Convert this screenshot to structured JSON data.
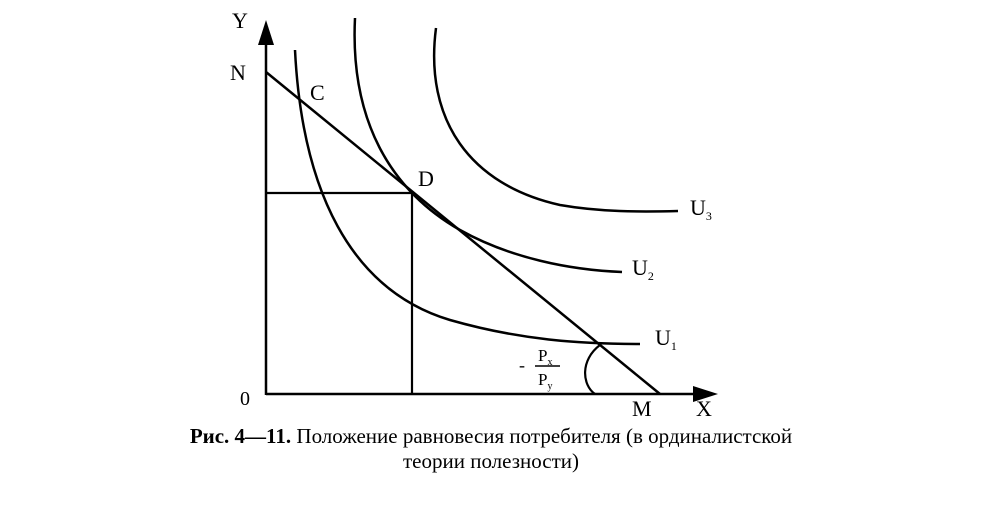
{
  "diagram": {
    "axis_y_label": "Y",
    "axis_x_label": "X",
    "origin_label": "0",
    "point_n": "N",
    "point_c": "C",
    "point_d": "D",
    "point_m": "M",
    "curve_u1": "U",
    "curve_u1_sub": "1",
    "curve_u2": "U",
    "curve_u2_sub": "2",
    "curve_u3": "U",
    "curve_u3_sub": "3",
    "slope_sign": "-",
    "slope_num": "P",
    "slope_num_sub": "x",
    "slope_den": "P",
    "slope_den_sub": "y"
  },
  "caption": {
    "figure": "Рис. 4—11.",
    "line1": " Положение равновесия потребителя (в ординалистской",
    "line2": "теории полезности)"
  }
}
